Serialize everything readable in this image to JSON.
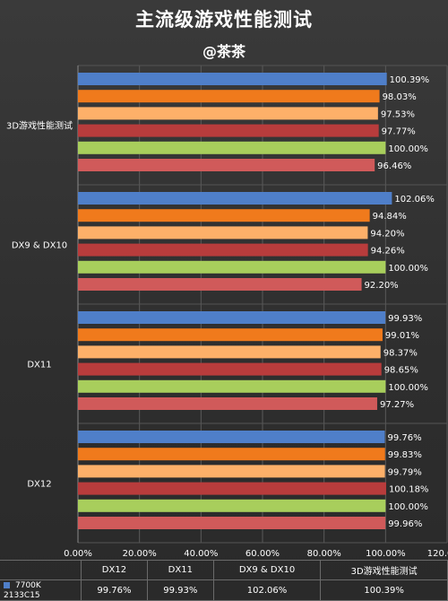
{
  "title": "主流级游戏性能测试",
  "subtitle": "@茶茶",
  "chart_data": {
    "type": "bar",
    "orientation": "horizontal",
    "categories": [
      "3D游戏性能测试",
      "DX9 & DX10",
      "DX11",
      "DX12"
    ],
    "series": [
      {
        "name": "7700K 2133C15",
        "color": "#4f7fc9",
        "values": [
          100.39,
          102.06,
          99.93,
          99.76
        ]
      },
      {
        "color": "#f07a1c",
        "values": [
          98.03,
          94.84,
          99.01,
          99.83
        ]
      },
      {
        "color": "#fdb069",
        "values": [
          97.53,
          94.2,
          98.37,
          99.79
        ]
      },
      {
        "color": "#b83c3c",
        "values": [
          97.77,
          94.26,
          98.65,
          100.18
        ]
      },
      {
        "color": "#a8ce5c",
        "values": [
          100.0,
          100.0,
          100.0,
          100.0
        ]
      },
      {
        "color": "#d05a5a",
        "values": [
          96.46,
          92.2,
          97.27,
          99.96
        ]
      }
    ],
    "x_ticks": [
      "0.00%",
      "20.00%",
      "40.00%",
      "60.00%",
      "80.00%",
      "100.00%",
      "120.00%"
    ],
    "xlim": [
      0,
      120
    ],
    "grid": true,
    "value_format": "percent_2dp"
  },
  "table": {
    "headers": [
      "DX12",
      "DX11",
      "DX9 & DX10",
      "3D游戏性能测试"
    ],
    "rows": [
      {
        "series_label": "7700K",
        "series_label_2": "2133C15",
        "values": [
          "99.76%",
          "99.93%",
          "102.06%",
          "100.39%"
        ]
      }
    ]
  }
}
